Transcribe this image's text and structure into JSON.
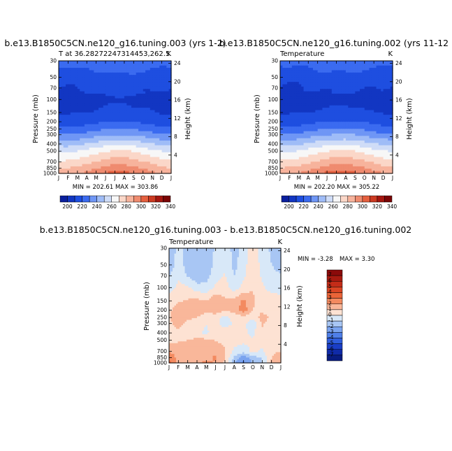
{
  "chart_data": [
    {
      "type": "heatmap",
      "title": "b.e13.B1850C5CN.ne120_g16.tuning.003 (yrs 1-2)",
      "subtitle_left": "T at 36.28272247314453,262.5",
      "subtitle_right": "K",
      "ylabel": "Pressure (mb)",
      "ylabel_right": "Height (km)",
      "months": [
        "J",
        "F",
        "M",
        "A",
        "M",
        "J",
        "J",
        "A",
        "S",
        "O",
        "N",
        "D",
        "J"
      ],
      "pressure_levels": [
        "30",
        "50",
        "70",
        "100",
        "150",
        "200",
        "250",
        "300",
        "400",
        "500",
        "700",
        "850",
        "1000"
      ],
      "height_ticks": [
        "24",
        "20",
        "16",
        "12",
        "8",
        "4"
      ],
      "stats": "MIN = 202.61  MAX = 303.86",
      "min": 202.61,
      "max": 303.86,
      "colorbar_labels": [
        "200",
        "220",
        "240",
        "260",
        "280",
        "300",
        "320",
        "340"
      ],
      "colorbar_colors": [
        "#0a1f9e",
        "#1236c2",
        "#1e4ee0",
        "#3b6bf0",
        "#6f96f5",
        "#9fbcf7",
        "#cfdcf7",
        "#f7f7f7",
        "#fbd7c8",
        "#f7b39c",
        "#ef8b6f",
        "#e5603f",
        "#cc3a22",
        "#a5160f",
        "#7a0505"
      ],
      "profile_jan": [
        {
          "p": 30,
          "t": 224
        },
        {
          "p": 50,
          "t": 213
        },
        {
          "p": 70,
          "t": 210
        },
        {
          "p": 100,
          "t": 207
        },
        {
          "p": 150,
          "t": 209
        },
        {
          "p": 200,
          "t": 214
        },
        {
          "p": 250,
          "t": 222
        },
        {
          "p": 300,
          "t": 230
        },
        {
          "p": 400,
          "t": 246
        },
        {
          "p": 500,
          "t": 258
        },
        {
          "p": 700,
          "t": 272
        },
        {
          "p": 850,
          "t": 280
        },
        {
          "p": 1000,
          "t": 287
        }
      ],
      "seasonal_amp": [
        {
          "p": 30,
          "a": 6
        },
        {
          "p": 50,
          "a": 4
        },
        {
          "p": 70,
          "a": 3
        },
        {
          "p": 100,
          "a": 2
        },
        {
          "p": 150,
          "a": 3
        },
        {
          "p": 200,
          "a": 6
        },
        {
          "p": 250,
          "a": 8
        },
        {
          "p": 300,
          "a": 10
        },
        {
          "p": 400,
          "a": 12
        },
        {
          "p": 500,
          "a": 13
        },
        {
          "p": 700,
          "a": 14
        },
        {
          "p": 850,
          "a": 15
        },
        {
          "p": 1000,
          "a": 16
        }
      ]
    },
    {
      "type": "heatmap",
      "title": "b.e13.B1850C5CN.ne120_g16.tuning.002 (yrs 11-12",
      "subtitle_left": "Temperature",
      "subtitle_right": "K",
      "ylabel": "Pressure (mb)",
      "ylabel_right": "Height (km)",
      "months": [
        "J",
        "F",
        "M",
        "A",
        "M",
        "J",
        "J",
        "A",
        "S",
        "O",
        "N",
        "D",
        "J"
      ],
      "pressure_levels": [
        "30",
        "50",
        "70",
        "100",
        "150",
        "200",
        "250",
        "300",
        "400",
        "500",
        "700",
        "850",
        "1000"
      ],
      "height_ticks": [
        "24",
        "20",
        "16",
        "12",
        "8",
        "4"
      ],
      "stats": "MIN = 202.20  MAX = 305.22",
      "min": 202.2,
      "max": 305.22,
      "colorbar_labels": [
        "200",
        "220",
        "240",
        "260",
        "280",
        "300",
        "320",
        "340"
      ],
      "colorbar_colors": [
        "#0a1f9e",
        "#1236c2",
        "#1e4ee0",
        "#3b6bf0",
        "#6f96f5",
        "#9fbcf7",
        "#cfdcf7",
        "#f7f7f7",
        "#fbd7c8",
        "#f7b39c",
        "#ef8b6f",
        "#e5603f",
        "#cc3a22",
        "#a5160f",
        "#7a0505"
      ],
      "profile_jan": [
        {
          "p": 30,
          "t": 223
        },
        {
          "p": 50,
          "t": 212
        },
        {
          "p": 70,
          "t": 209
        },
        {
          "p": 100,
          "t": 206
        },
        {
          "p": 150,
          "t": 209
        },
        {
          "p": 200,
          "t": 215
        },
        {
          "p": 250,
          "t": 223
        },
        {
          "p": 300,
          "t": 231
        },
        {
          "p": 400,
          "t": 247
        },
        {
          "p": 500,
          "t": 259
        },
        {
          "p": 700,
          "t": 273
        },
        {
          "p": 850,
          "t": 281
        },
        {
          "p": 1000,
          "t": 288
        }
      ],
      "seasonal_amp": [
        {
          "p": 30,
          "a": 6
        },
        {
          "p": 50,
          "a": 4
        },
        {
          "p": 70,
          "a": 3
        },
        {
          "p": 100,
          "a": 2
        },
        {
          "p": 150,
          "a": 3
        },
        {
          "p": 200,
          "a": 6
        },
        {
          "p": 250,
          "a": 8
        },
        {
          "p": 300,
          "a": 10
        },
        {
          "p": 400,
          "a": 12
        },
        {
          "p": 500,
          "a": 13
        },
        {
          "p": 700,
          "a": 14
        },
        {
          "p": 850,
          "a": 15
        },
        {
          "p": 1000,
          "a": 17
        }
      ]
    },
    {
      "type": "heatmap",
      "title": "b.e13.B1850C5CN.ne120_g16.tuning.003 - b.e13.B1850C5CN.ne120_g16.tuning.002",
      "subtitle_left": "Temperature",
      "subtitle_right": "K",
      "ylabel": "Pressure (mb)",
      "ylabel_right": "Height (km)",
      "months": [
        "J",
        "F",
        "M",
        "A",
        "M",
        "J",
        "J",
        "A",
        "S",
        "O",
        "N",
        "D",
        "J"
      ],
      "pressure_levels": [
        "30",
        "50",
        "70",
        "100",
        "150",
        "200",
        "250",
        "300",
        "400",
        "500",
        "700",
        "850",
        "1000"
      ],
      "height_ticks": [
        "24",
        "20",
        "16",
        "12",
        "8",
        "4"
      ],
      "stats_min": "MIN = -3.28",
      "stats_max": "MAX =    3.30",
      "min": -3.28,
      "max": 3.3,
      "colorbar_labels": [
        "7",
        "6",
        "5",
        "4",
        "3",
        "2",
        "1",
        "0",
        "-1",
        "-2",
        "-3",
        "-4",
        "-5",
        "-6",
        "-7"
      ],
      "colorbar_colors": [
        "#8b0a0a",
        "#a81a10",
        "#c42c18",
        "#da4524",
        "#ea6438",
        "#f38a60",
        "#f9b79a",
        "#fde2d3",
        "#d8e8f8",
        "#a8c6f4",
        "#7aa3ef",
        "#4f7fe8",
        "#2f5ddc",
        "#1a3ec6",
        "#0f2aa8",
        "#081c80"
      ],
      "diff_grid": [
        [
          -2.0,
          -0.6,
          -1.6,
          -1.9,
          -1.9,
          -0.8,
          -0.3,
          -1.4,
          -0.6,
          0.7,
          -0.5,
          -1.2,
          -1.6
        ],
        [
          -1.7,
          -0.4,
          -1.5,
          -2.0,
          -1.8,
          -0.6,
          -0.2,
          -1.3,
          -0.4,
          0.8,
          -0.4,
          -1.0,
          -1.4
        ],
        [
          -1.0,
          -0.2,
          -1.1,
          -1.7,
          -1.4,
          -0.4,
          0.1,
          -1.0,
          -0.2,
          0.9,
          -0.2,
          -0.7,
          -0.9
        ],
        [
          -0.5,
          0.3,
          0.2,
          -0.6,
          -0.7,
          0.2,
          0.4,
          -0.5,
          0.3,
          1.0,
          0.2,
          -0.4,
          -0.4
        ],
        [
          0.6,
          0.9,
          1.1,
          1.3,
          1.0,
          1.9,
          1.2,
          1.4,
          2.2,
          1.1,
          0.6,
          0.5,
          0.4
        ],
        [
          0.8,
          1.4,
          1.7,
          1.6,
          1.2,
          1.6,
          1.0,
          1.5,
          2.6,
          1.0,
          0.8,
          0.4,
          0.3
        ],
        [
          0.9,
          1.8,
          1.3,
          1.0,
          0.5,
          0.4,
          -0.3,
          0.3,
          0.6,
          0.2,
          1.5,
          0.7,
          0.4
        ],
        [
          0.8,
          1.3,
          0.7,
          0.4,
          0.1,
          0.2,
          -0.4,
          0.1,
          0.2,
          -0.6,
          1.1,
          0.6,
          0.5
        ],
        [
          0.6,
          0.8,
          0.5,
          0.3,
          -0.3,
          0.8,
          0.5,
          0.6,
          0.2,
          -0.2,
          0.9,
          0.5,
          0.7
        ],
        [
          0.7,
          0.9,
          1.0,
          1.3,
          1.3,
          0.9,
          0.8,
          0.4,
          0.2,
          0.1,
          0.7,
          0.5,
          0.8
        ],
        [
          1.8,
          1.5,
          1.2,
          1.6,
          1.9,
          1.8,
          1.1,
          -0.3,
          -0.4,
          0.2,
          -0.2,
          0.9,
          1.0
        ],
        [
          2.9,
          1.6,
          1.4,
          1.7,
          1.8,
          2.1,
          1.2,
          -1.2,
          -2.6,
          -1.4,
          -0.9,
          1.0,
          1.4
        ],
        [
          3.3,
          1.8,
          1.3,
          1.9,
          2.2,
          1.9,
          0.7,
          -1.8,
          -3.28,
          -1.9,
          -1.0,
          1.3,
          1.6
        ]
      ]
    }
  ]
}
